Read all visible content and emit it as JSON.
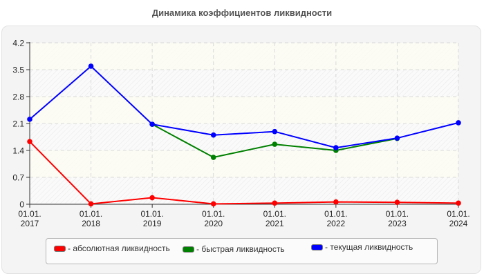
{
  "title": "Динамика коэффициентов ликвидности",
  "chart_data": {
    "type": "line",
    "title": "Динамика коэффициентов ликвидности",
    "xlabel": "",
    "ylabel": "",
    "categories": [
      "01.01.\n2017",
      "01.01.\n2018",
      "01.01.\n2019",
      "01.01.\n2020",
      "01.01.\n2021",
      "01.01.\n2022",
      "01.01.\n2023",
      "01.01.\n2024"
    ],
    "x_labels_top": [
      "01.01.",
      "01.01.",
      "01.01.",
      "01.01.",
      "01.01.",
      "01.01.",
      "01.01.",
      "01.01."
    ],
    "x_labels_bottom": [
      "2017",
      "2018",
      "2019",
      "2020",
      "2021",
      "2022",
      "2023",
      "2024"
    ],
    "ylim": [
      0,
      4.2
    ],
    "yticks": [
      "0",
      "0.7",
      "1.4",
      "2.1",
      "2.8",
      "3.5",
      "4.2"
    ],
    "grid": true,
    "legend_position": "bottom",
    "series": [
      {
        "name": "абсолютная ликвидность",
        "color": "#ff0000",
        "values": [
          1.63,
          0.01,
          0.17,
          0.01,
          0.03,
          0.06,
          0.05,
          0.03
        ]
      },
      {
        "name": "быстрая ликвидность",
        "color": "#008000",
        "values": [
          null,
          null,
          2.08,
          1.22,
          1.56,
          1.4,
          1.71,
          null
        ]
      },
      {
        "name": "текущая ликвидность",
        "color": "#0000ff",
        "values": [
          2.21,
          3.59,
          2.08,
          1.8,
          1.89,
          1.47,
          1.72,
          2.12
        ]
      }
    ]
  },
  "legend": [
    {
      "label": "- абсолютная ликвидность",
      "color": "#ff0000"
    },
    {
      "label": "- быстрая ликвидность",
      "color": "#008000"
    },
    {
      "label": "- текущая ликвидность",
      "color": "#0000ff"
    }
  ]
}
